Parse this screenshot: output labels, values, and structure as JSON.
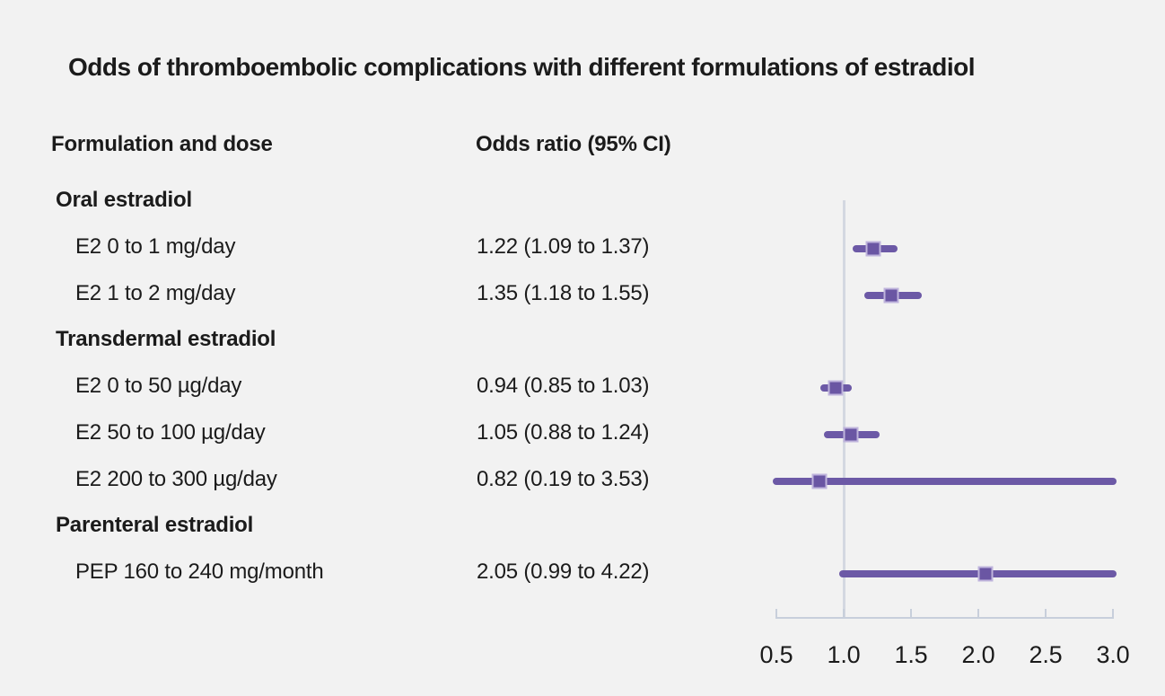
{
  "title": "Odds of thromboembolic complications with different formulations of estradiol",
  "columns": {
    "formulation": "Formulation and dose",
    "odds_ratio": "Odds ratio (95% CI)"
  },
  "axis": {
    "tick_labels": [
      "0.5",
      "1.0",
      "1.5",
      "2.0",
      "2.5",
      "3.0"
    ]
  },
  "colors": {
    "background": "#f2f2f2",
    "text": "#1b1b1b",
    "ci_line": "#6c59a6",
    "marker": "#6a56a3",
    "marker_border": "#bfb4dc",
    "axis": "#c8cfdb",
    "reference_line": "#d4d8e1"
  },
  "chart_data": {
    "type": "scatter",
    "subtype": "forest-plot",
    "title": "Odds of thromboembolic complications with different formulations of estradiol",
    "xlabel": "Odds ratio (95% CI)",
    "xlim": [
      0.5,
      3.0
    ],
    "xticks": [
      0.5,
      1.0,
      1.5,
      2.0,
      2.5,
      3.0
    ],
    "reference_line_x": 1.0,
    "grid": false,
    "legend": false,
    "groups": [
      {
        "group": "Oral estradiol",
        "items": [
          {
            "label": "E2 0 to 1 mg/day",
            "or_text": "1.22 (1.09 to 1.37)",
            "odds_ratio": 1.22,
            "ci_lower": 1.09,
            "ci_upper": 1.37
          },
          {
            "label": "E2 1 to 2 mg/day",
            "or_text": "1.35 (1.18 to 1.55)",
            "odds_ratio": 1.35,
            "ci_lower": 1.18,
            "ci_upper": 1.55
          }
        ]
      },
      {
        "group": "Transdermal estradiol",
        "items": [
          {
            "label": "E2 0 to 50 µg/day",
            "or_text": "0.94 (0.85 to 1.03)",
            "odds_ratio": 0.94,
            "ci_lower": 0.85,
            "ci_upper": 1.03
          },
          {
            "label": "E2 50 to 100 µg/day",
            "or_text": "1.05 (0.88 to 1.24)",
            "odds_ratio": 1.05,
            "ci_lower": 0.88,
            "ci_upper": 1.24
          },
          {
            "label": "E2 200 to 300 µg/day",
            "or_text": "0.82 (0.19 to 3.53)",
            "odds_ratio": 0.82,
            "ci_lower": 0.19,
            "ci_upper": 3.53
          }
        ]
      },
      {
        "group": "Parenteral estradiol",
        "items": [
          {
            "label": "PEP 160 to 240 mg/month",
            "or_text": "2.05 (0.99 to 4.22)",
            "odds_ratio": 2.05,
            "ci_lower": 0.99,
            "ci_upper": 4.22
          }
        ]
      }
    ]
  }
}
